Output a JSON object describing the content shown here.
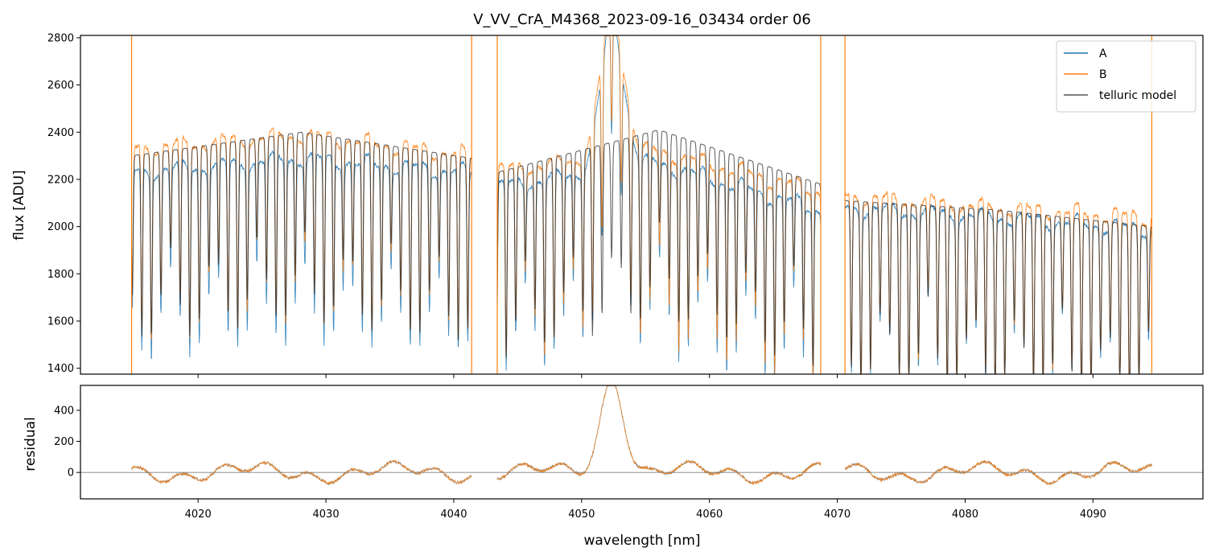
{
  "chart_data": {
    "type": "line",
    "title": "V_VV_CrA_M4368_2023-09-16_03434  order 06",
    "xlabel": "wavelength [nm]",
    "colors": {
      "A": "#1f77b4",
      "B": "#ff7f0e",
      "telluric": "#555555",
      "zero_line": "#7f7f7f"
    },
    "top_panel": {
      "ylabel": "flux [ADU]",
      "ylim": [
        1375,
        2810
      ],
      "yticks": [
        1400,
        1600,
        1800,
        2000,
        2200,
        2400,
        2600,
        2800
      ],
      "legend": {
        "placement": "top-right",
        "entries": [
          "A",
          "B",
          "telluric model"
        ]
      }
    },
    "bottom_panel": {
      "ylabel": "residual",
      "ylim": [
        -170,
        560
      ],
      "yticks": [
        0,
        200,
        400
      ]
    },
    "xlim": [
      4010.8,
      4098.6
    ],
    "xticks": [
      4020,
      4030,
      4040,
      4050,
      4060,
      4070,
      4080,
      4090
    ],
    "segments": [
      {
        "x_start": 4014.8,
        "x_end": 4041.4,
        "continuum_A": [
          2230,
          2290,
          2230
        ],
        "continuum_B": [
          2330,
          2390,
          2300
        ],
        "continuum_model": [
          2300,
          2400,
          2290
        ]
      },
      {
        "x_start": 4043.4,
        "x_end": 4068.7,
        "continuum_A": [
          2170,
          2270,
          2070
        ],
        "continuum_B": [
          2240,
          2320,
          2150
        ],
        "continuum_model": [
          2230,
          2410,
          2180
        ]
      },
      {
        "x_start": 4070.6,
        "x_end": 4094.6,
        "continuum_A": [
          2080,
          2040,
          1990
        ],
        "continuum_B": [
          2130,
          2080,
          2040
        ],
        "continuum_model": [
          2110,
          2070,
          2000
        ]
      }
    ],
    "emission_feature": {
      "center": 4052.4,
      "width": 1.3,
      "peak_residual": 560
    }
  }
}
